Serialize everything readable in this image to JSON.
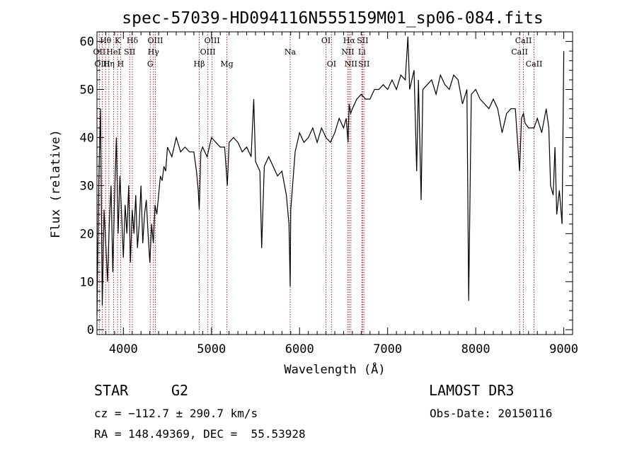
{
  "header": {
    "title": "spec-57039-HD094116N555159M01_sp06-084.fits"
  },
  "info": {
    "object_class": "STAR",
    "subclass": "G2",
    "survey": "LAMOST DR3",
    "cz": "cz = −112.7 ± 290.7 km/s",
    "obs_date": "Obs-Date: 20150116",
    "coords": "RA = 148.49369, DEC =  55.53928"
  },
  "colors": {
    "spectrum": "#000000",
    "line_markers": "#b22222",
    "axes": "#000000"
  },
  "chart_data": {
    "type": "line",
    "title": "spec-57039-HD094116N555159M01_sp06-084.fits",
    "xlabel": "Wavelength (Å)",
    "ylabel": "Flux (relative)",
    "xlim": [
      3700,
      9100
    ],
    "ylim": [
      -1,
      62
    ],
    "xticks": [
      4000,
      5000,
      6000,
      7000,
      8000,
      9000
    ],
    "yticks": [
      0,
      10,
      20,
      30,
      40,
      50,
      60
    ],
    "grid": false,
    "spectral_lines": [
      {
        "label": "OII",
        "wavelength": 3727,
        "row": 2
      },
      {
        "label": "Hθ",
        "wavelength": 3798,
        "row": 1
      },
      {
        "label": "OIII",
        "wavelength": 3760,
        "row": 3
      },
      {
        "label": "Hη",
        "wavelength": 3835,
        "row": 3
      },
      {
        "label": "HeI",
        "wavelength": 3889,
        "row": 2
      },
      {
        "label": "K",
        "wavelength": 3934,
        "row": 1
      },
      {
        "label": "H",
        "wavelength": 3969,
        "row": 3
      },
      {
        "label": "SII",
        "wavelength": 4072,
        "row": 2
      },
      {
        "label": "Hδ",
        "wavelength": 4102,
        "row": 1
      },
      {
        "label": "G",
        "wavelength": 4305,
        "row": 3
      },
      {
        "label": "Hγ",
        "wavelength": 4341,
        "row": 2
      },
      {
        "label": "OIII",
        "wavelength": 4363,
        "row": 1
      },
      {
        "label": "Hβ",
        "wavelength": 4861,
        "row": 3
      },
      {
        "label": "OIII",
        "wavelength": 4959,
        "row": 2
      },
      {
        "label": "OIII",
        "wavelength": 5007,
        "row": 1
      },
      {
        "label": "Mg",
        "wavelength": 5175,
        "row": 3
      },
      {
        "label": "Na",
        "wavelength": 5894,
        "row": 2
      },
      {
        "label": "OI",
        "wavelength": 6300,
        "row": 1
      },
      {
        "label": "OI",
        "wavelength": 6363,
        "row": 3
      },
      {
        "label": "NII",
        "wavelength": 6548,
        "row": 2
      },
      {
        "label": "Hα",
        "wavelength": 6563,
        "row": 1
      },
      {
        "label": "NII",
        "wavelength": 6583,
        "row": 3
      },
      {
        "label": "Li",
        "wavelength": 6708,
        "row": 2
      },
      {
        "label": "SII",
        "wavelength": 6716,
        "row": 1
      },
      {
        "label": "SII",
        "wavelength": 6731,
        "row": 3
      },
      {
        "label": "CaII",
        "wavelength": 8498,
        "row": 2
      },
      {
        "label": "CaII",
        "wavelength": 8542,
        "row": 1
      },
      {
        "label": "CaII",
        "wavelength": 8662,
        "row": 3
      }
    ],
    "series": [
      {
        "x": [
          3700,
          3720,
          3740,
          3760,
          3780,
          3800,
          3820,
          3840,
          3860,
          3880,
          3900,
          3920,
          3940,
          3960,
          3980,
          4000,
          4020,
          4040,
          4060,
          4080,
          4100,
          4120,
          4140,
          4160,
          4180,
          4200,
          4220,
          4240,
          4260,
          4280,
          4300,
          4320,
          4340,
          4360,
          4380,
          4400,
          4420,
          4440,
          4460,
          4480,
          4500,
          4550,
          4600,
          4650,
          4700,
          4750,
          4800,
          4830,
          4850,
          4861,
          4880,
          4900,
          4950,
          5000,
          5050,
          5100,
          5150,
          5180,
          5200,
          5250,
          5300,
          5350,
          5400,
          5450,
          5480,
          5500,
          5550,
          5570,
          5600,
          5650,
          5700,
          5750,
          5800,
          5850,
          5880,
          5894,
          5900,
          5950,
          6000,
          6050,
          6100,
          6150,
          6200,
          6250,
          6300,
          6350,
          6400,
          6450,
          6500,
          6530,
          6550,
          6563,
          6580,
          6600,
          6650,
          6700,
          6750,
          6800,
          6850,
          6900,
          6950,
          7000,
          7050,
          7100,
          7150,
          7200,
          7230,
          7250,
          7300,
          7330,
          7350,
          7380,
          7400,
          7450,
          7500,
          7550,
          7600,
          7650,
          7700,
          7750,
          7800,
          7850,
          7900,
          7920,
          7950,
          8000,
          8050,
          8100,
          8150,
          8200,
          8250,
          8300,
          8350,
          8400,
          8450,
          8498,
          8520,
          8542,
          8560,
          8600,
          8662,
          8700,
          8750,
          8800,
          8830,
          8850,
          8880,
          8900,
          8920,
          8950,
          8980,
          9000
        ],
        "y": [
          3,
          30,
          46,
          5,
          25,
          18,
          10,
          22,
          30,
          12,
          28,
          40,
          20,
          32,
          24,
          15,
          26,
          20,
          30,
          14,
          25,
          20,
          28,
          17,
          22,
          30,
          18,
          24,
          27,
          20,
          14,
          22,
          18,
          26,
          24,
          28,
          32,
          31,
          34,
          33,
          38,
          36,
          40,
          37,
          38,
          37,
          37,
          33,
          29,
          25,
          37,
          38,
          36,
          40,
          39,
          38,
          38,
          30,
          39,
          40,
          39,
          37,
          38,
          36,
          48,
          35,
          33,
          17,
          34,
          36,
          34,
          32,
          33,
          28,
          22,
          9,
          25,
          37,
          41,
          39,
          40,
          42,
          39,
          42,
          40,
          39,
          41,
          44,
          42,
          44,
          39,
          47,
          45,
          46,
          48,
          49,
          48,
          48,
          50,
          50,
          51,
          50,
          52,
          50,
          53,
          52,
          61,
          50,
          54,
          33,
          52,
          27,
          50,
          51,
          52,
          49,
          53,
          51,
          50,
          53,
          52,
          47,
          50,
          6,
          49,
          50,
          48,
          47,
          46,
          48,
          46,
          41,
          45,
          46,
          46,
          33,
          44,
          45,
          43,
          42,
          42,
          44,
          41,
          46,
          42,
          30,
          28,
          38,
          24,
          29,
          22,
          58
        ]
      }
    ]
  }
}
